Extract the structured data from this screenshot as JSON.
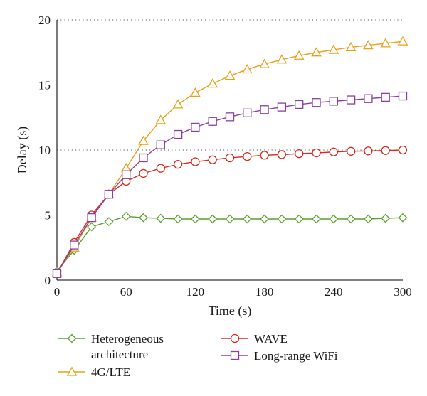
{
  "chart_data": {
    "type": "line",
    "title": "",
    "xlabel": "Time (s)",
    "ylabel": "Delay (s)",
    "xlim": [
      0,
      300
    ],
    "ylim": [
      0,
      20
    ],
    "x_ticks": [
      0,
      60,
      120,
      180,
      240,
      300
    ],
    "y_ticks": [
      0,
      5,
      10,
      15,
      20
    ],
    "grid": "horizontal dotted",
    "legend_position": "bottom",
    "x": [
      0,
      15,
      30,
      45,
      60,
      75,
      90,
      105,
      120,
      135,
      150,
      165,
      180,
      195,
      210,
      225,
      240,
      255,
      270,
      285,
      300
    ],
    "series": [
      {
        "name": "Heterogeneous architecture",
        "legend_lines": [
          "Heterogeneous",
          "architecture"
        ],
        "color": "#5aa02c",
        "marker": "diamond",
        "values": [
          0.7,
          2.3,
          4.1,
          4.5,
          4.9,
          4.8,
          4.75,
          4.7,
          4.7,
          4.7,
          4.7,
          4.7,
          4.7,
          4.7,
          4.7,
          4.7,
          4.7,
          4.7,
          4.7,
          4.75,
          4.8
        ]
      },
      {
        "name": "4G/LTE",
        "legend_lines": [
          "4G/LTE"
        ],
        "color": "#e8a21a",
        "marker": "triangle",
        "values": [
          0.6,
          2.5,
          4.8,
          6.6,
          8.6,
          10.7,
          12.3,
          13.5,
          14.4,
          15.1,
          15.7,
          16.2,
          16.6,
          16.95,
          17.25,
          17.5,
          17.7,
          17.9,
          18.05,
          18.2,
          18.35
        ]
      },
      {
        "name": "WAVE",
        "legend_lines": [
          "WAVE"
        ],
        "color": "#d9281c",
        "marker": "circle",
        "values": [
          0.5,
          2.9,
          5.0,
          6.6,
          7.6,
          8.2,
          8.6,
          8.9,
          9.1,
          9.25,
          9.4,
          9.5,
          9.6,
          9.65,
          9.72,
          9.78,
          9.85,
          9.9,
          9.93,
          9.96,
          10.0
        ]
      },
      {
        "name": "Long-range WiFi",
        "legend_lines": [
          "Long-range WiFi"
        ],
        "color": "#8a3f9e",
        "marker": "square",
        "values": [
          0.5,
          2.7,
          4.8,
          6.6,
          8.1,
          9.4,
          10.4,
          11.2,
          11.75,
          12.2,
          12.55,
          12.85,
          13.1,
          13.3,
          13.5,
          13.65,
          13.75,
          13.85,
          13.95,
          14.05,
          14.15
        ]
      }
    ]
  }
}
